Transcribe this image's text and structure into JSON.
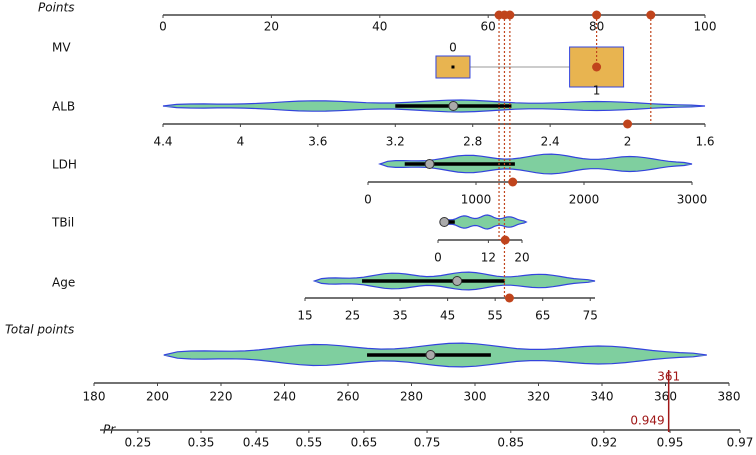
{
  "chart_data": {
    "type": "nomogram",
    "points": {
      "label": "Points",
      "xlim": [
        0,
        100
      ],
      "xticks": [
        0,
        20,
        40,
        60,
        80,
        100
      ]
    },
    "variables": [
      {
        "label": "MV",
        "categories": [
          "0",
          "1"
        ],
        "points": [
          53.5,
          80
        ],
        "observed_points": 80
      },
      {
        "label": "ALB",
        "xlim": [
          4.4,
          1.6
        ],
        "xticks": [
          4.4,
          4,
          3.6,
          3.2,
          2.8,
          2.4,
          2,
          1.6
        ],
        "range": [
          4.4,
          1.6
        ],
        "box": [
          3.2,
          2.6
        ],
        "median": 2.9,
        "observed": 2,
        "observed_points": 90
      },
      {
        "label": "LDH",
        "xlim": [
          0,
          3000
        ],
        "xticks": [
          0,
          1000,
          2000,
          3000
        ],
        "range": [
          110,
          3000
        ],
        "box": [
          340,
          1360
        ],
        "median": 570,
        "observed": 1340,
        "observed_points": 64
      },
      {
        "label": "TBil",
        "xlim": [
          0,
          20
        ],
        "xticks": [
          0,
          12,
          20
        ],
        "range": [
          0.5,
          21
        ],
        "box": [
          0.5,
          4
        ],
        "median": 1.5,
        "observed": 16,
        "observed_points": 62
      },
      {
        "label": "Age",
        "xlim": [
          15,
          76
        ],
        "xticks": [
          15,
          25,
          35,
          45,
          55,
          65,
          75
        ],
        "range": [
          17,
          76
        ],
        "box": [
          27,
          57
        ],
        "median": 47,
        "observed": 58,
        "observed_points": 63
      }
    ],
    "total": {
      "label": "Total points",
      "xlim": [
        180,
        380
      ],
      "xticks": [
        180,
        200,
        220,
        240,
        260,
        280,
        300,
        320,
        340,
        360,
        380
      ],
      "range": [
        202,
        373
      ],
      "box": [
        266,
        305
      ],
      "median": 286,
      "observed": 361
    },
    "pr": {
      "label": "Pr",
      "scale": "logit",
      "xlim": [
        0.2,
        0.97
      ],
      "xticks": [
        0.25,
        0.35,
        0.45,
        0.55,
        0.65,
        0.75,
        0.85,
        0.92,
        0.95,
        0.97
      ],
      "observed": 0.949
    },
    "colors": {
      "marker": "#c0441c",
      "violin": "#7fcf9f",
      "outline": "#3344dd",
      "box": "#e8b450",
      "observed_line": "#a01818"
    }
  }
}
